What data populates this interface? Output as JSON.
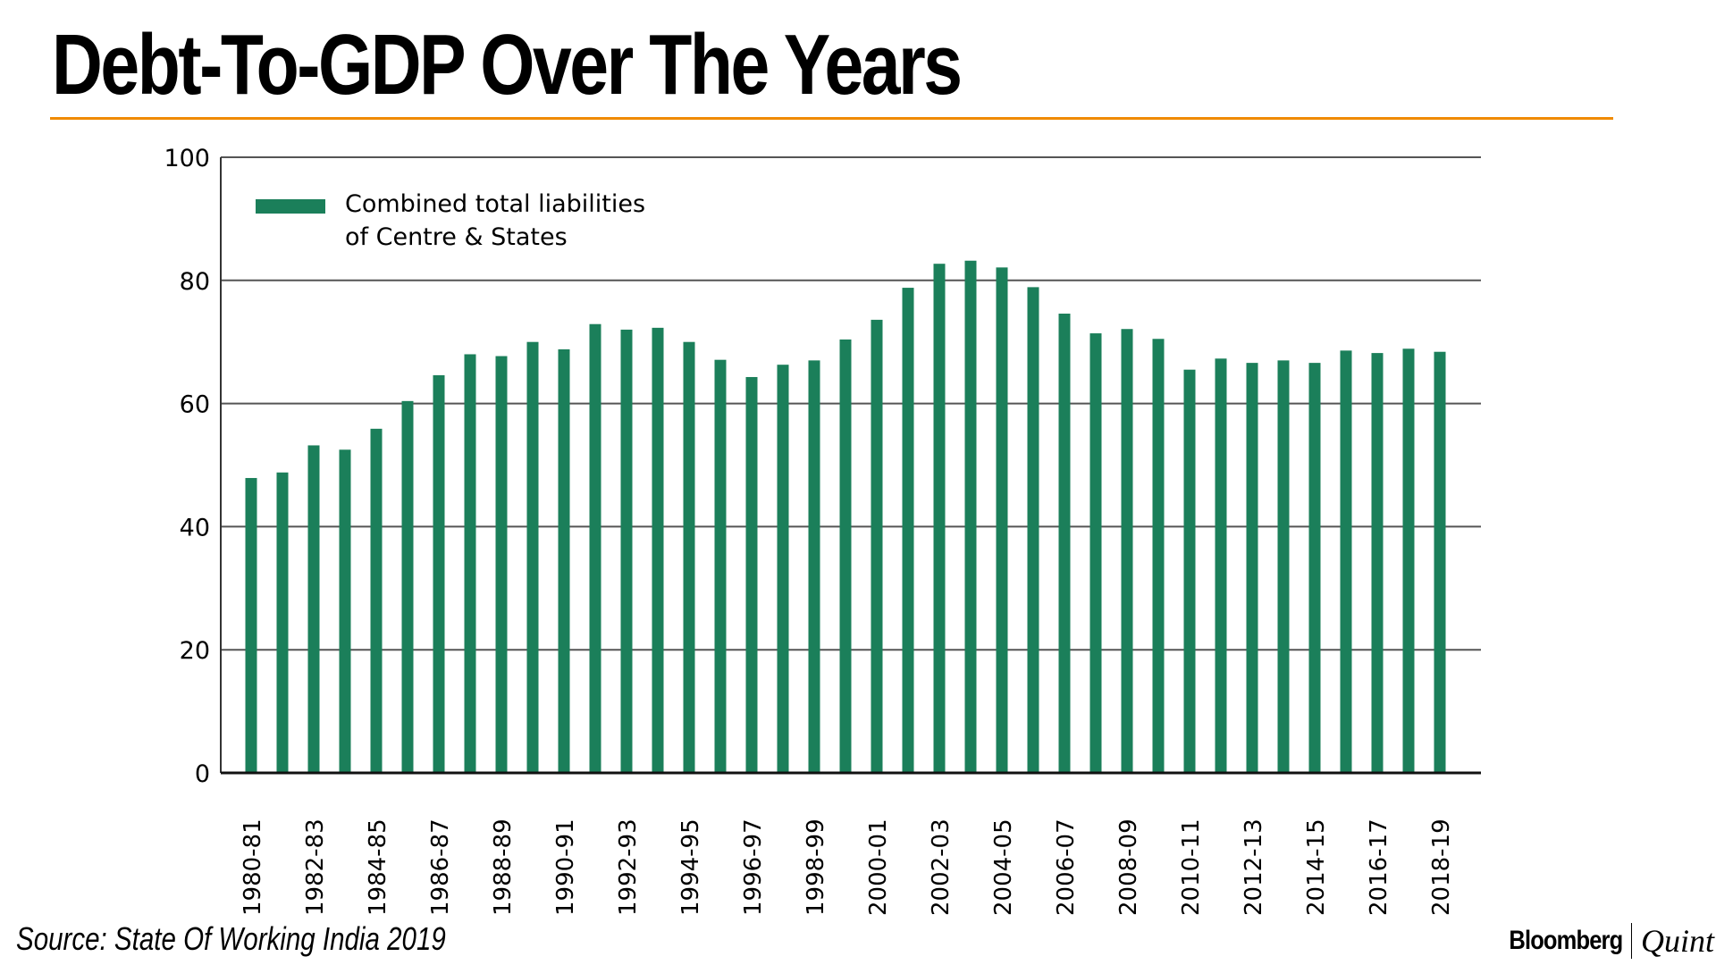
{
  "title": "Debt-To-GDP Over The Years",
  "source": "Source: State Of Working India 2019",
  "brand": {
    "primary": "Bloomberg",
    "secondary": "Quint"
  },
  "colors": {
    "bar": "#1b7f5a",
    "accent_rule": "#f08a00",
    "grid": "#555555"
  },
  "legend": {
    "label_line1": "Combined total liabilities",
    "label_line2": "of Centre & States"
  },
  "chart_data": {
    "type": "bar",
    "title": "Debt-To-GDP Over The Years",
    "xlabel": "",
    "ylabel": "",
    "ylim": [
      0,
      100
    ],
    "yticks": [
      0,
      20,
      40,
      60,
      80,
      100
    ],
    "grid": true,
    "legend_position": "top-left",
    "categories": [
      "1980-81",
      "1981-82",
      "1982-83",
      "1983-84",
      "1984-85",
      "1985-86",
      "1986-87",
      "1987-88",
      "1988-89",
      "1989-90",
      "1990-91",
      "1991-92",
      "1992-93",
      "1993-94",
      "1994-95",
      "1995-96",
      "1996-97",
      "1997-98",
      "1998-99",
      "1999-00",
      "2000-01",
      "2001-02",
      "2002-03",
      "2003-04",
      "2004-05",
      "2005-06",
      "2006-07",
      "2007-08",
      "2008-09",
      "2009-10",
      "2010-11",
      "2011-12",
      "2012-13",
      "2013-14",
      "2014-15",
      "2015-16",
      "2016-17",
      "2017-18",
      "2018-19"
    ],
    "visible_tick_labels": [
      "1980-81",
      "1982-83",
      "1984-85",
      "1986-87",
      "1988-89",
      "1990-91",
      "1992-93",
      "1994-95",
      "1996-97",
      "1998-99",
      "2000-01",
      "2002-03",
      "2004-05",
      "2006-07",
      "2008-09",
      "2010-11",
      "2012-13",
      "2014-15",
      "2016-17",
      "2018-19"
    ],
    "series": [
      {
        "name": "Combined total liabilities of Centre & States",
        "values": [
          47.9,
          48.8,
          53.2,
          52.5,
          55.9,
          60.4,
          64.6,
          68.0,
          67.7,
          70.0,
          68.8,
          72.9,
          72.0,
          72.3,
          70.0,
          67.1,
          64.3,
          66.3,
          67.0,
          70.4,
          73.6,
          78.8,
          82.7,
          83.2,
          82.1,
          78.9,
          74.6,
          71.4,
          72.1,
          70.5,
          65.5,
          67.3,
          66.6,
          67.0,
          66.6,
          68.6,
          68.2,
          68.9,
          68.4
        ]
      }
    ]
  }
}
